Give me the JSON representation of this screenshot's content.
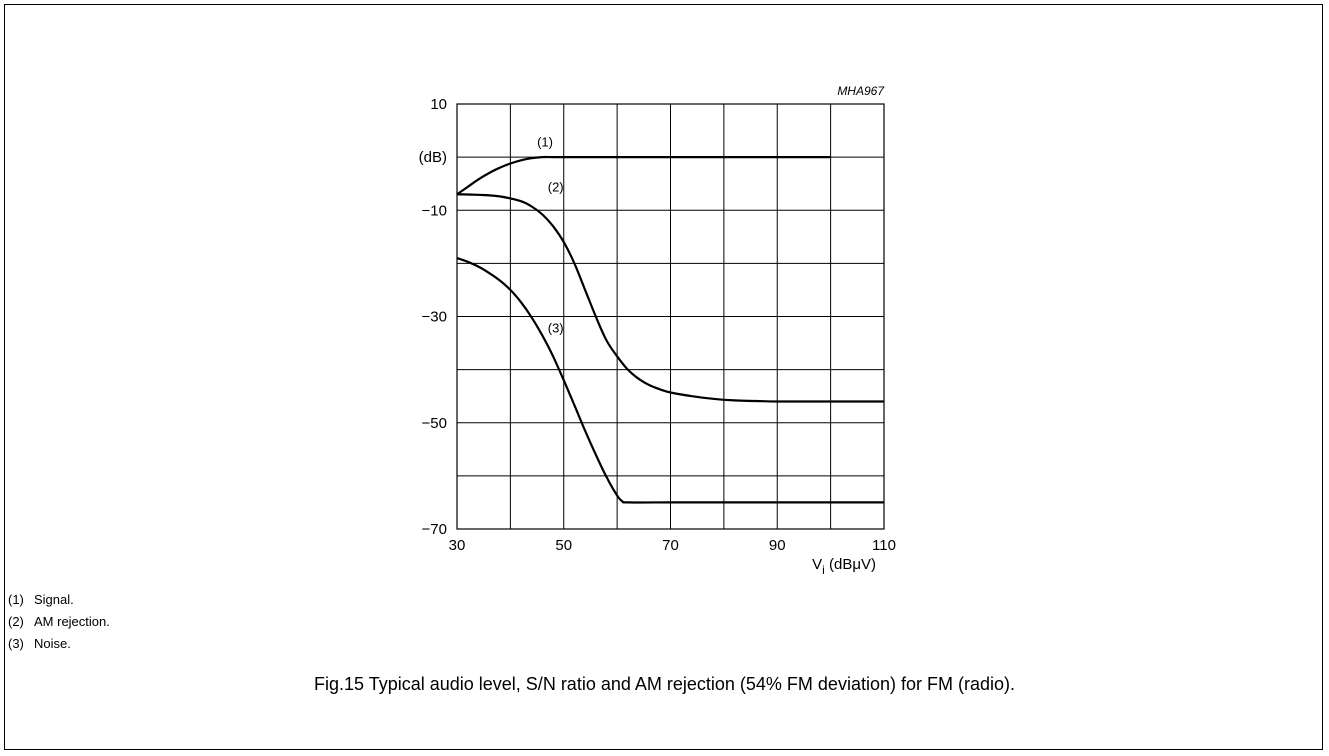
{
  "chart_data": {
    "type": "line",
    "figure_code": "MHA967",
    "ylabel_unit": "(dB)",
    "xlabel_main": "V",
    "xlabel_sub": "i",
    "xlabel_unit": " (dBμV)",
    "xlim": [
      30,
      110
    ],
    "ylim": [
      -70,
      10
    ],
    "x_ticks": [
      30,
      50,
      70,
      90,
      110
    ],
    "y_ticks": [
      10,
      -10,
      -30,
      -50,
      -70
    ],
    "grid": true,
    "series": [
      {
        "label": "(1)",
        "label_at": [
          45,
          2
        ],
        "x": [
          30,
          32,
          34,
          36,
          38,
          40,
          42,
          44,
          46,
          48,
          50,
          60,
          70,
          80,
          90,
          100
        ],
        "y": [
          -7,
          -5.6,
          -4.2,
          -3,
          -2,
          -1.2,
          -0.6,
          -0.2,
          0,
          0,
          0,
          0,
          0,
          0,
          0,
          0
        ]
      },
      {
        "label": "(2)",
        "label_at": [
          47,
          -6.5
        ],
        "x": [
          30,
          34,
          38,
          42,
          44,
          46,
          48,
          50,
          52,
          54,
          56,
          58,
          60,
          62,
          64,
          66,
          68,
          70,
          74,
          78,
          82,
          86,
          90,
          100,
          110
        ],
        "y": [
          -7,
          -7.1,
          -7.4,
          -8.3,
          -9.3,
          -10.8,
          -13,
          -16,
          -20,
          -25,
          -30,
          -34.5,
          -37.5,
          -40,
          -41.7,
          -42.9,
          -43.7,
          -44.3,
          -45,
          -45.5,
          -45.8,
          -45.9,
          -46,
          -46,
          -46
        ]
      },
      {
        "label": "(3)",
        "label_at": [
          47,
          -33
        ],
        "x": [
          30,
          32,
          34,
          36,
          38,
          40,
          42,
          44,
          46,
          48,
          50,
          52,
          54,
          56,
          58,
          60,
          61,
          62,
          70,
          80,
          90,
          100,
          110
        ],
        "y": [
          -19,
          -19.7,
          -20.6,
          -21.8,
          -23.2,
          -25,
          -27.3,
          -30.2,
          -33.6,
          -37.5,
          -42,
          -46.7,
          -51.5,
          -56,
          -60.2,
          -63.7,
          -64.8,
          -65,
          -65,
          -65,
          -65,
          -65,
          -65
        ]
      }
    ]
  },
  "legend": [
    {
      "num": "(1)",
      "text": "Signal."
    },
    {
      "num": "(2)",
      "text": "AM rejection."
    },
    {
      "num": "(3)",
      "text": "Noise."
    }
  ],
  "caption": "Fig.15  Typical audio level, S/N ratio and AM rejection (54% FM deviation) for FM (radio)."
}
